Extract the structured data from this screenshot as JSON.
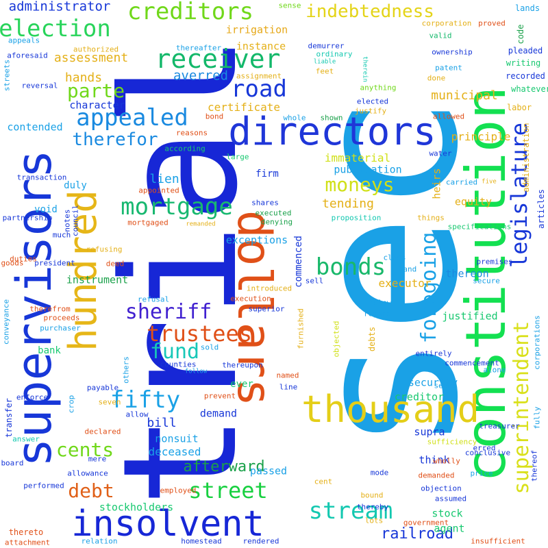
{
  "words": [
    {
      "text": "sec",
      "color": "#1aa1e6"
    },
    {
      "text": "trial",
      "color": "#1727d6"
    },
    {
      "text": "constitution",
      "color": "#13e051"
    },
    {
      "text": "supervisors",
      "color": "#1737d8"
    },
    {
      "text": "dollars",
      "color": "#e05018"
    },
    {
      "text": "hundred",
      "color": "#e6b618"
    },
    {
      "text": "directors",
      "color": "#1f36d8"
    },
    {
      "text": "thousand",
      "color": "#e4ce18"
    },
    {
      "text": "insolvent",
      "color": "#1727d6"
    },
    {
      "text": "receiver",
      "color": "#13b86a"
    },
    {
      "text": "legislature",
      "color": "#1737d8"
    },
    {
      "text": "superintendent",
      "color": "#d9e01a"
    },
    {
      "text": "creditors",
      "color": "#70d81a"
    },
    {
      "text": "election",
      "color": "#28d45a"
    },
    {
      "text": "mortgage",
      "color": "#18b870"
    },
    {
      "text": "appealed",
      "color": "#1a8ae0"
    },
    {
      "text": "bonds",
      "color": "#18b86a"
    },
    {
      "text": "trustees",
      "color": "#e05018"
    },
    {
      "text": "stream",
      "color": "#13c8b0"
    },
    {
      "text": "street",
      "color": "#18d040"
    },
    {
      "text": "indebtedness",
      "color": "#e4d418"
    },
    {
      "text": "foregoing",
      "color": "#1aa1e6"
    },
    {
      "text": "road",
      "color": "#1737d8"
    },
    {
      "text": "parte",
      "color": "#70d81a"
    },
    {
      "text": "therefor",
      "color": "#1a8ae0"
    },
    {
      "text": "sheriff",
      "color": "#4020d0"
    },
    {
      "text": "fund",
      "color": "#18c8b8"
    },
    {
      "text": "fifty",
      "color": "#1aa1e6"
    },
    {
      "text": "moneys",
      "color": "#d0e018"
    },
    {
      "text": "cents",
      "color": "#70d81a"
    },
    {
      "text": "debt",
      "color": "#e06018"
    },
    {
      "text": "afterward",
      "color": "#1aa14a"
    },
    {
      "text": "railroad",
      "color": "#1737d8"
    },
    {
      "text": "administrator",
      "color": "#1737d8"
    },
    {
      "text": "assessment",
      "color": "#e4b018"
    },
    {
      "text": "hands",
      "color": "#e4b018"
    },
    {
      "text": "averred",
      "color": "#1a8ae0"
    },
    {
      "text": "irrigation",
      "color": "#e6a818"
    },
    {
      "text": "instance",
      "color": "#e4b018"
    },
    {
      "text": "municipal",
      "color": "#e4b018"
    },
    {
      "text": "certificate",
      "color": "#e4b018"
    },
    {
      "text": "character",
      "color": "#1737d8"
    },
    {
      "text": "contended",
      "color": "#1aa1e6"
    },
    {
      "text": "tending",
      "color": "#e4b018"
    },
    {
      "text": "immaterial",
      "color": "#d0e018"
    },
    {
      "text": "publication",
      "color": "#1aa1e6"
    },
    {
      "text": "lien",
      "color": "#1aa1e6"
    },
    {
      "text": "equity",
      "color": "#e4b018"
    },
    {
      "text": "heirs",
      "color": "#e4b018"
    },
    {
      "text": "principle",
      "color": "#e4b018"
    },
    {
      "text": "exceptions",
      "color": "#1aa1e6"
    },
    {
      "text": "bill",
      "color": "#1737d8"
    },
    {
      "text": "demand",
      "color": "#1737d8"
    },
    {
      "text": "deceased",
      "color": "#1aa1e6"
    },
    {
      "text": "nonsuit",
      "color": "#1aa1e6"
    },
    {
      "text": "instrument",
      "color": "#1aa14a"
    },
    {
      "text": "executor",
      "color": "#e4b018"
    },
    {
      "text": "thereon",
      "color": "#1a8ae0"
    },
    {
      "text": "justified",
      "color": "#18c870"
    },
    {
      "text": "security",
      "color": "#1aa1e6"
    },
    {
      "text": "creditor",
      "color": "#18c870"
    },
    {
      "text": "supra",
      "color": "#1737d8"
    },
    {
      "text": "think",
      "color": "#1737d8"
    },
    {
      "text": "passed",
      "color": "#1aa1e6"
    },
    {
      "text": "stockholders",
      "color": "#18c870"
    },
    {
      "text": "stock",
      "color": "#18c870"
    },
    {
      "text": "agent",
      "color": "#18c870"
    },
    {
      "text": "duly",
      "color": "#1aa1e6"
    },
    {
      "text": "bank",
      "color": "#18c870"
    },
    {
      "text": "commenced",
      "color": "#1737d8"
    },
    {
      "text": "firm",
      "color": "#1737d8"
    },
    {
      "text": "void",
      "color": "#1aa1e6"
    },
    {
      "text": "ever",
      "color": "#18c870"
    },
    {
      "text": "sense",
      "color": "#70d81a"
    },
    {
      "text": "demurrer",
      "color": "#1737d8"
    },
    {
      "text": "ordinary",
      "color": "#13c8b0"
    },
    {
      "text": "corporation",
      "color": "#e4b018"
    },
    {
      "text": "proved",
      "color": "#e05018"
    },
    {
      "text": "lands",
      "color": "#1aa1e6"
    },
    {
      "text": "code",
      "color": "#1aa14a"
    },
    {
      "text": "valid",
      "color": "#13b86a"
    },
    {
      "text": "ownership",
      "color": "#1737d8"
    },
    {
      "text": "pleaded",
      "color": "#1737d8"
    },
    {
      "text": "appeals",
      "color": "#1aa1e6"
    },
    {
      "text": "authorized",
      "color": "#e4b018"
    },
    {
      "text": "aforesaid",
      "color": "#1737d8"
    },
    {
      "text": "thereafter",
      "color": "#1aa1e6"
    },
    {
      "text": "liable",
      "color": "#13c8b0"
    },
    {
      "text": "therein",
      "color": "#13c8b0"
    },
    {
      "text": "writing",
      "color": "#18c870"
    },
    {
      "text": "patent",
      "color": "#1aa1e6"
    },
    {
      "text": "recorded",
      "color": "#1737d8"
    },
    {
      "text": "done",
      "color": "#e4b018"
    },
    {
      "text": "whatever",
      "color": "#18c870"
    },
    {
      "text": "streets",
      "color": "#1aa1e6"
    },
    {
      "text": "reversal",
      "color": "#1737d8"
    },
    {
      "text": "assignment",
      "color": "#e4b018"
    },
    {
      "text": "feet",
      "color": "#e4b018"
    },
    {
      "text": "anything",
      "color": "#70d81a"
    },
    {
      "text": "elected",
      "color": "#1737d8"
    },
    {
      "text": "justify",
      "color": "#e4b018"
    },
    {
      "text": "shown",
      "color": "#1aa14a"
    },
    {
      "text": "whole",
      "color": "#1aa1e6"
    },
    {
      "text": "allowed",
      "color": "#e05018"
    },
    {
      "text": "labor",
      "color": "#e4b018"
    },
    {
      "text": "administration",
      "color": "#e4b018"
    },
    {
      "text": "bond",
      "color": "#e05018"
    },
    {
      "text": "reasons",
      "color": "#e05018"
    },
    {
      "text": "according",
      "color": "#18c870"
    },
    {
      "text": "large",
      "color": "#18c870"
    },
    {
      "text": "water",
      "color": "#1737d8"
    },
    {
      "text": "transaction",
      "color": "#1737d8"
    },
    {
      "text": "appointed",
      "color": "#e05018"
    },
    {
      "text": "shares",
      "color": "#1737d8"
    },
    {
      "text": "executed",
      "color": "#1aa14a"
    },
    {
      "text": "denying",
      "color": "#1aa14a"
    },
    {
      "text": "proposition",
      "color": "#13c8b0"
    },
    {
      "text": "carried",
      "color": "#1aa1e6"
    },
    {
      "text": "five",
      "color": "#e4b018"
    },
    {
      "text": "articles",
      "color": "#1737d8"
    },
    {
      "text": "partnership",
      "color": "#1737d8"
    },
    {
      "text": "notes",
      "color": "#1737d8"
    },
    {
      "text": "council",
      "color": "#1737d8"
    },
    {
      "text": "mortgaged",
      "color": "#e05018"
    },
    {
      "text": "remanded",
      "color": "#e4b018"
    },
    {
      "text": "things",
      "color": "#e4b018"
    },
    {
      "text": "specifications",
      "color": "#18c870"
    },
    {
      "text": "much",
      "color": "#1737d8"
    },
    {
      "text": "refusing",
      "color": "#e4b018"
    },
    {
      "text": "duties",
      "color": "#e05018"
    },
    {
      "text": "president",
      "color": "#1737d8"
    },
    {
      "text": "goods",
      "color": "#e05018"
    },
    {
      "text": "deed",
      "color": "#e05018"
    },
    {
      "text": "class",
      "color": "#1aa1e6"
    },
    {
      "text": "land",
      "color": "#1aa1e6"
    },
    {
      "text": "sell",
      "color": "#1737d8"
    },
    {
      "text": "premises",
      "color": "#1737d8"
    },
    {
      "text": "secure",
      "color": "#1aa1e6"
    },
    {
      "text": "refusal",
      "color": "#1aa1e6"
    },
    {
      "text": "introduced",
      "color": "#e4b018"
    },
    {
      "text": "execution",
      "color": "#e05018"
    },
    {
      "text": "therefrom",
      "color": "#e05018"
    },
    {
      "text": "proceeds",
      "color": "#e05018"
    },
    {
      "text": "superior",
      "color": "#1737d8"
    },
    {
      "text": "regard",
      "color": "#1aa1e6"
    },
    {
      "text": "below",
      "color": "#1aa1e6"
    },
    {
      "text": "conveyance",
      "color": "#1aa1e6"
    },
    {
      "text": "purchaser",
      "color": "#1aa1e6"
    },
    {
      "text": "sold",
      "color": "#1aa1e6"
    },
    {
      "text": "furnished",
      "color": "#e4b018"
    },
    {
      "text": "objected",
      "color": "#d0e018"
    },
    {
      "text": "debts",
      "color": "#e4b018"
    },
    {
      "text": "entirely",
      "color": "#1737d8"
    },
    {
      "text": "commencement",
      "color": "#1737d8"
    },
    {
      "text": "alone",
      "color": "#1aa1e6"
    },
    {
      "text": "corporations",
      "color": "#1aa1e6"
    },
    {
      "text": "counties",
      "color": "#1737d8"
    },
    {
      "text": "follow",
      "color": "#1aa1e6"
    },
    {
      "text": "named",
      "color": "#e05018"
    },
    {
      "text": "others",
      "color": "#1aa1e6"
    },
    {
      "text": "thereupon",
      "color": "#1737d8"
    },
    {
      "text": "seems",
      "color": "#1aa1e6"
    },
    {
      "text": "payable",
      "color": "#1737d8"
    },
    {
      "text": "line",
      "color": "#1737d8"
    },
    {
      "text": "crop",
      "color": "#1aa1e6"
    },
    {
      "text": "seven",
      "color": "#e4b018"
    },
    {
      "text": "prevent",
      "color": "#e05018"
    },
    {
      "text": "enforce",
      "color": "#1737d8"
    },
    {
      "text": "transfer",
      "color": "#1737d8"
    },
    {
      "text": "allow",
      "color": "#1737d8"
    },
    {
      "text": "treasurer",
      "color": "#1737d8"
    },
    {
      "text": "declared",
      "color": "#e05018"
    },
    {
      "text": "sufficiency",
      "color": "#d0e018"
    },
    {
      "text": "erred",
      "color": "#1737d8"
    },
    {
      "text": "fully",
      "color": "#1aa1e6"
    },
    {
      "text": "answer",
      "color": "#13c8b0"
    },
    {
      "text": "wholly",
      "color": "#e05018"
    },
    {
      "text": "conclusive",
      "color": "#1737d8"
    },
    {
      "text": "board",
      "color": "#1737d8"
    },
    {
      "text": "mere",
      "color": "#1737d8"
    },
    {
      "text": "price",
      "color": "#1aa1e6"
    },
    {
      "text": "thereof",
      "color": "#1737d8"
    },
    {
      "text": "allowance",
      "color": "#1737d8"
    },
    {
      "text": "mode",
      "color": "#1737d8"
    },
    {
      "text": "demanded",
      "color": "#e05018"
    },
    {
      "text": "performed",
      "color": "#1737d8"
    },
    {
      "text": "employed",
      "color": "#e05018"
    },
    {
      "text": "cent",
      "color": "#e4b018"
    },
    {
      "text": "objection",
      "color": "#1737d8"
    },
    {
      "text": "assumed",
      "color": "#1737d8"
    },
    {
      "text": "bound",
      "color": "#e4b018"
    },
    {
      "text": "thereby",
      "color": "#1737d8"
    },
    {
      "text": "government",
      "color": "#e05018"
    },
    {
      "text": "lots",
      "color": "#e4b018"
    },
    {
      "text": "thereto",
      "color": "#e05018"
    },
    {
      "text": "attachment",
      "color": "#e05018"
    },
    {
      "text": "relation",
      "color": "#1aa1e6"
    },
    {
      "text": "homestead",
      "color": "#1737d8"
    },
    {
      "text": "rendered",
      "color": "#1737d8"
    },
    {
      "text": "insufficient",
      "color": "#e05018"
    }
  ]
}
